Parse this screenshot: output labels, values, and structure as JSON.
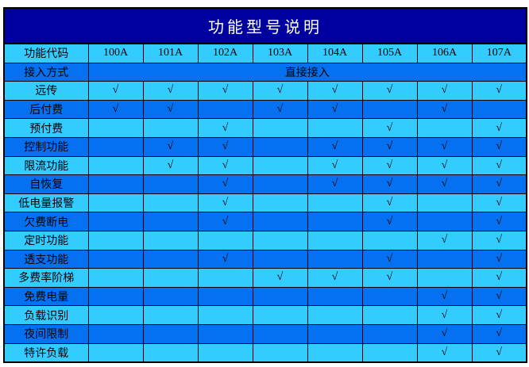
{
  "title": "功能型号说明",
  "table": {
    "corner_label": "功能代码",
    "columns": [
      "100A",
      "101A",
      "102A",
      "103A",
      "104A",
      "105A",
      "106A",
      "107A"
    ],
    "access_row": {
      "label": "接入方式",
      "value": "直接接入"
    },
    "check_symbol": "√",
    "rows": [
      {
        "label": "远传",
        "checks": [
          1,
          1,
          1,
          1,
          1,
          1,
          1,
          1
        ]
      },
      {
        "label": "后付费",
        "checks": [
          1,
          1,
          0,
          1,
          1,
          0,
          1,
          0
        ]
      },
      {
        "label": "预付费",
        "checks": [
          0,
          0,
          1,
          0,
          0,
          1,
          0,
          1
        ]
      },
      {
        "label": "控制功能",
        "checks": [
          0,
          1,
          1,
          0,
          1,
          1,
          1,
          1
        ]
      },
      {
        "label": "限流功能",
        "checks": [
          0,
          1,
          1,
          0,
          1,
          1,
          1,
          1
        ]
      },
      {
        "label": "自恢复",
        "checks": [
          0,
          0,
          1,
          0,
          1,
          1,
          1,
          1
        ]
      },
      {
        "label": "低电量报警",
        "checks": [
          0,
          0,
          1,
          0,
          0,
          1,
          0,
          1
        ]
      },
      {
        "label": "欠费断电",
        "checks": [
          0,
          0,
          1,
          0,
          0,
          1,
          0,
          1
        ]
      },
      {
        "label": "定时功能",
        "checks": [
          0,
          0,
          0,
          0,
          0,
          0,
          1,
          1
        ]
      },
      {
        "label": "透支功能",
        "checks": [
          0,
          0,
          1,
          0,
          0,
          1,
          0,
          1
        ]
      },
      {
        "label": "多费率阶梯",
        "checks": [
          0,
          0,
          0,
          1,
          1,
          1,
          0,
          1
        ]
      },
      {
        "label": "免费电量",
        "checks": [
          0,
          0,
          0,
          0,
          0,
          0,
          1,
          1
        ]
      },
      {
        "label": "负载识别",
        "checks": [
          0,
          0,
          0,
          0,
          0,
          0,
          1,
          1
        ]
      },
      {
        "label": "夜间限制",
        "checks": [
          0,
          0,
          0,
          0,
          0,
          0,
          1,
          1
        ]
      },
      {
        "label": "特许负载",
        "checks": [
          0,
          0,
          0,
          0,
          0,
          0,
          1,
          1
        ]
      }
    ]
  },
  "colors": {
    "title_bg": "#0000A0",
    "title_text": "#FFFFFF",
    "row_cyan": "#33CCFF",
    "row_blue": "#0570F0",
    "border": "#000000",
    "cell_text": "#000000"
  }
}
